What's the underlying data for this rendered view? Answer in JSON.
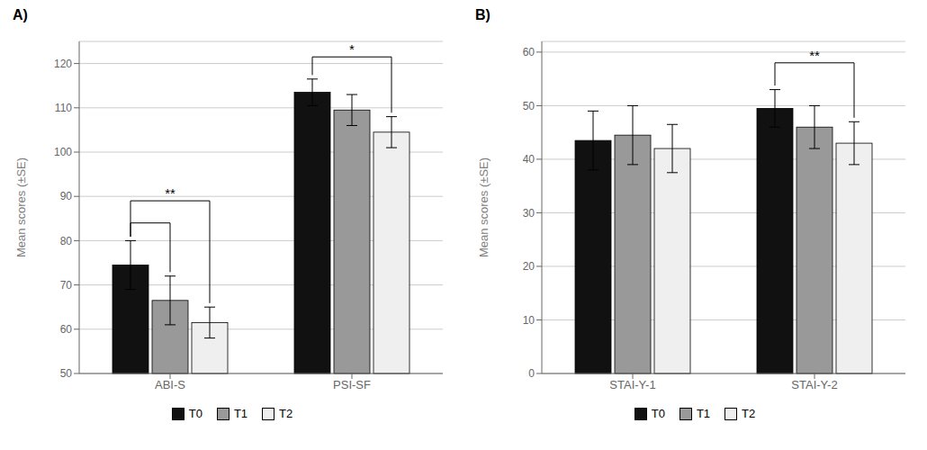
{
  "chart_data": [
    {
      "type": "bar",
      "title": "A)",
      "categories": [
        "ABI-S",
        "PSI-SF"
      ],
      "series": [
        {
          "name": "T0",
          "color": "#111111",
          "values": [
            74.5,
            113.5
          ],
          "errors": [
            5.5,
            3.0
          ]
        },
        {
          "name": "T1",
          "color": "#999999",
          "values": [
            66.5,
            109.5
          ],
          "errors": [
            5.5,
            3.5
          ]
        },
        {
          "name": "T2",
          "color": "#efefef",
          "values": [
            61.5,
            104.5
          ],
          "errors": [
            3.5,
            3.5
          ]
        }
      ],
      "ylabel": "Mean scores (±SE)",
      "ylim": [
        50,
        125
      ],
      "yticks": [
        50,
        60,
        70,
        80,
        90,
        100,
        110,
        120
      ],
      "grid": true,
      "legend": "bottom",
      "annotations": [
        {
          "text": "**",
          "category": "ABI-S",
          "brackets": [
            {
              "from": "T0",
              "to": "T2",
              "y": 89.0
            },
            {
              "from": "T0",
              "to": "T1",
              "y": 84.0
            }
          ]
        },
        {
          "text": "*",
          "category": "PSI-SF",
          "brackets": [
            {
              "from": "T0",
              "to": "T2",
              "y": 121.5
            }
          ]
        }
      ]
    },
    {
      "type": "bar",
      "title": "B)",
      "categories": [
        "STAI-Y-1",
        "STAI-Y-2"
      ],
      "series": [
        {
          "name": "T0",
          "color": "#111111",
          "values": [
            43.5,
            49.5
          ],
          "errors": [
            5.5,
            3.5
          ]
        },
        {
          "name": "T1",
          "color": "#999999",
          "values": [
            44.5,
            46.0
          ],
          "errors": [
            5.5,
            4.0
          ]
        },
        {
          "name": "T2",
          "color": "#efefef",
          "values": [
            42.0,
            43.0
          ],
          "errors": [
            4.5,
            4.0
          ]
        }
      ],
      "ylabel": "Mean scores (±SE)",
      "ylim": [
        0,
        62
      ],
      "yticks": [
        0,
        10,
        20,
        30,
        40,
        50,
        60
      ],
      "grid": true,
      "legend": "bottom",
      "annotations": [
        {
          "text": "**",
          "category": "STAI-Y-2",
          "brackets": [
            {
              "from": "T0",
              "to": "T2",
              "y": 58.0
            }
          ]
        }
      ]
    }
  ]
}
